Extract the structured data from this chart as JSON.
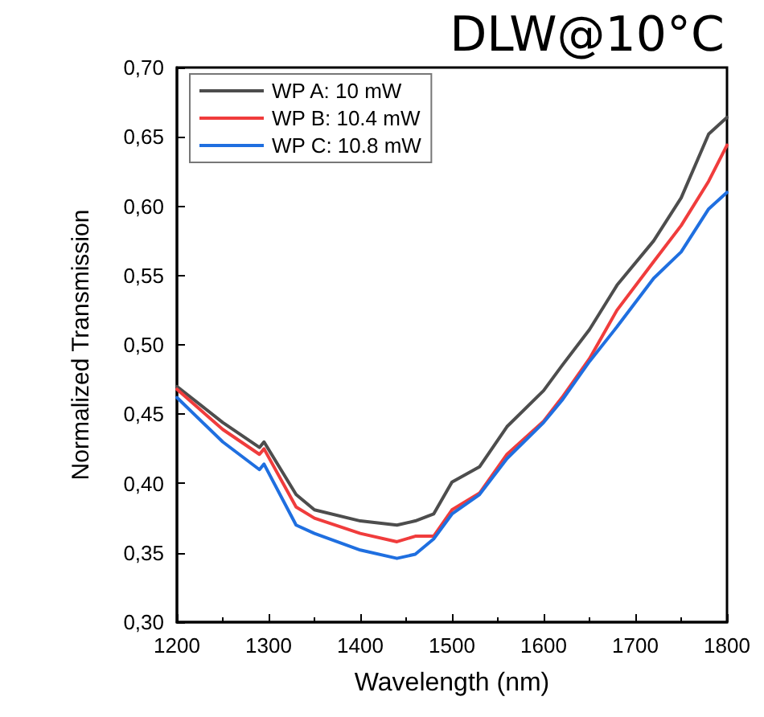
{
  "chart_data": {
    "type": "line",
    "title": "DLW@10°C",
    "xlabel": "Wavelength (nm)",
    "ylabel": "Normalized Transmission",
    "x": [
      1200,
      1250,
      1290,
      1295,
      1330,
      1350,
      1400,
      1440,
      1460,
      1480,
      1500,
      1530,
      1560,
      1600,
      1620,
      1650,
      1680,
      1720,
      1750,
      1780,
      1800
    ],
    "series": [
      {
        "name": "WP A: 10 mW",
        "color": "#4d4d4d",
        "values": [
          0.47,
          0.444,
          0.426,
          0.43,
          0.392,
          0.381,
          0.373,
          0.37,
          0.373,
          0.378,
          0.401,
          0.412,
          0.441,
          0.467,
          0.485,
          0.511,
          0.543,
          0.575,
          0.606,
          0.652,
          0.664
        ]
      },
      {
        "name": "WP B: 10.4 mW",
        "color": "#f03c3c",
        "values": [
          0.468,
          0.439,
          0.421,
          0.425,
          0.383,
          0.375,
          0.364,
          0.358,
          0.362,
          0.362,
          0.381,
          0.393,
          0.421,
          0.445,
          0.462,
          0.49,
          0.525,
          0.56,
          0.586,
          0.618,
          0.644
        ]
      },
      {
        "name": "WP C: 10.8 mW",
        "color": "#1f6fe0",
        "values": [
          0.462,
          0.43,
          0.41,
          0.414,
          0.37,
          0.364,
          0.352,
          0.346,
          0.349,
          0.36,
          0.378,
          0.392,
          0.418,
          0.444,
          0.46,
          0.488,
          0.513,
          0.548,
          0.567,
          0.598,
          0.61
        ]
      }
    ],
    "xlim": [
      1200,
      1800
    ],
    "xticks": [
      1200,
      1300,
      1400,
      1500,
      1600,
      1700,
      1800
    ],
    "ylim": [
      0.3,
      0.7
    ],
    "yticks": [
      {
        "value": 0.3,
        "label": "0,30"
      },
      {
        "value": 0.35,
        "label": "0,35"
      },
      {
        "value": 0.4,
        "label": "0,40"
      },
      {
        "value": 0.45,
        "label": "0,45"
      },
      {
        "value": 0.5,
        "label": "0,50"
      },
      {
        "value": 0.55,
        "label": "0,55"
      },
      {
        "value": 0.6,
        "label": "0,60"
      },
      {
        "value": 0.65,
        "label": "0,65"
      },
      {
        "value": 0.7,
        "label": "0,70"
      }
    ],
    "legend": "top left",
    "marker": "none",
    "line_style": "solid",
    "grid": false
  }
}
